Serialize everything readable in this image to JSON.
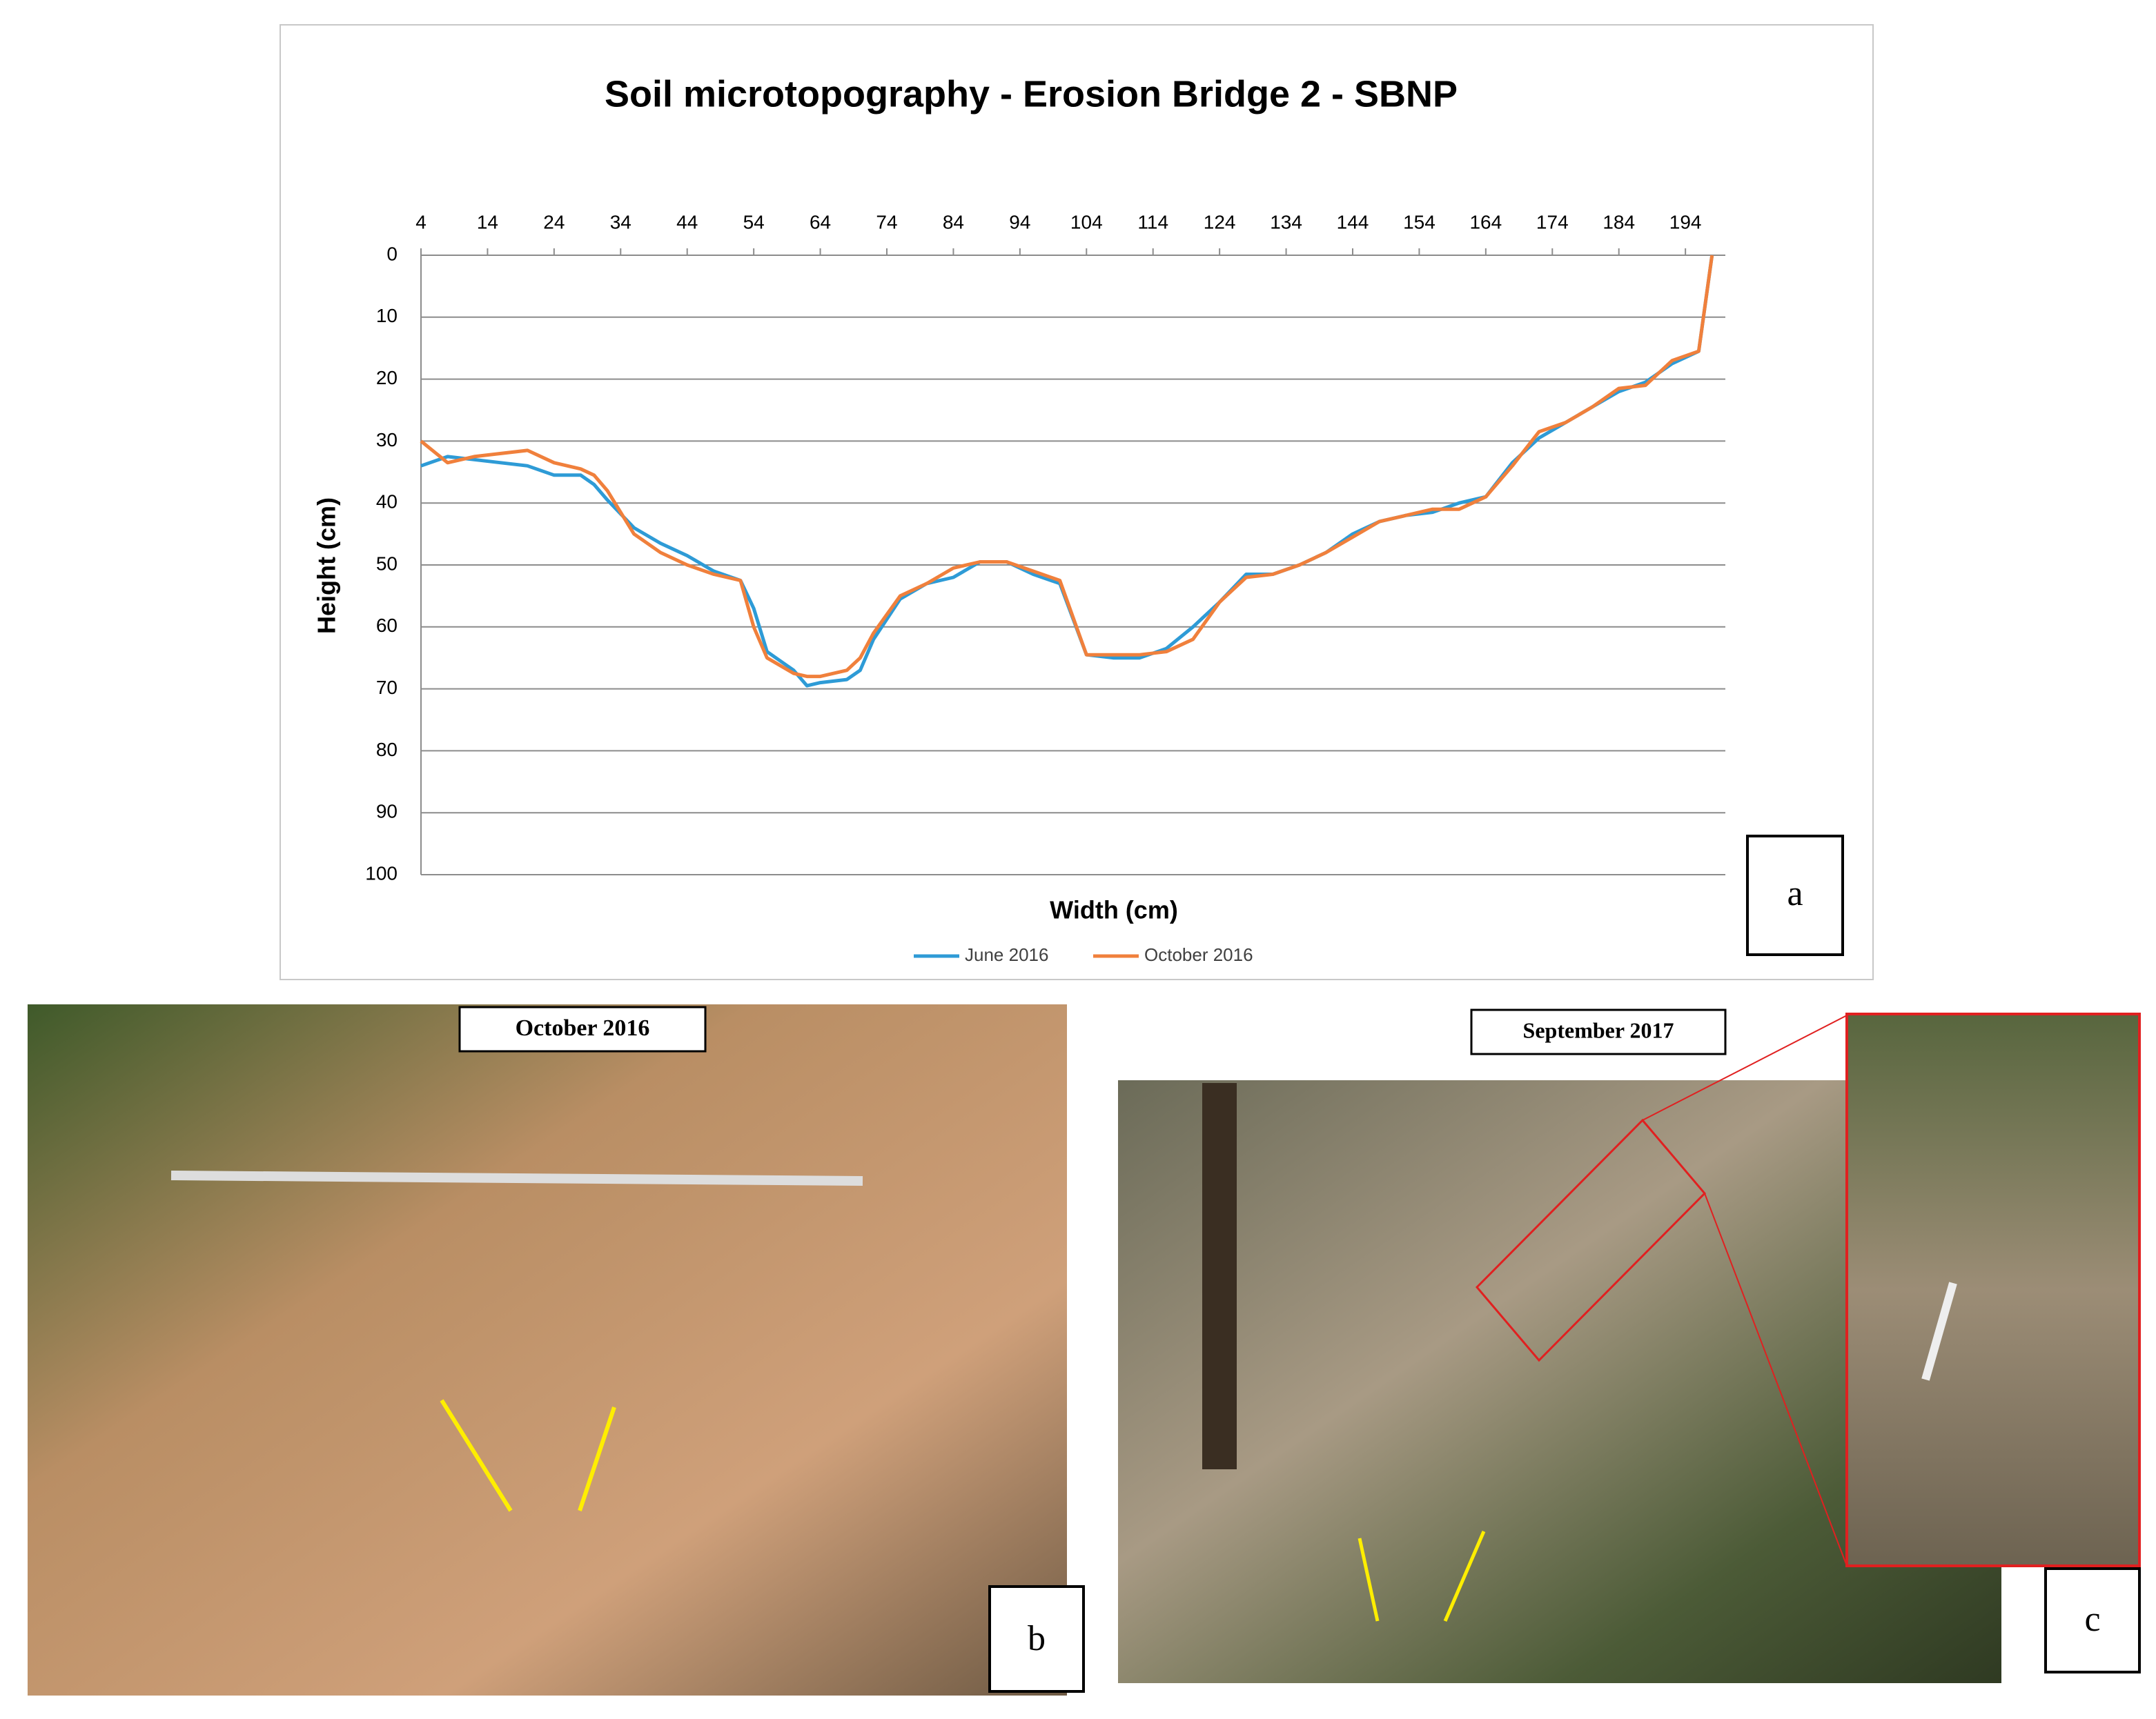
{
  "chart_data": {
    "type": "line",
    "title": "Soil microtopography - Erosion Bridge 2 - SBNP",
    "x_label": "Width (cm)",
    "y_label": "Height (cm)",
    "x": [
      4,
      8,
      12,
      16,
      20,
      24,
      28,
      30,
      32,
      36,
      40,
      44,
      48,
      52,
      54,
      56,
      60,
      62,
      64,
      68,
      70,
      72,
      76,
      80,
      84,
      88,
      92,
      96,
      100,
      104,
      108,
      112,
      116,
      120,
      124,
      128,
      132,
      136,
      140,
      144,
      148,
      152,
      156,
      160,
      164,
      168,
      172,
      176,
      180,
      184,
      188,
      192,
      196,
      198
    ],
    "series": [
      {
        "name": "June 2016",
        "color": "#2e9bd6",
        "values": [
          34,
          32.5,
          33,
          33.5,
          34,
          35.5,
          35.5,
          37,
          39.5,
          44,
          46.5,
          48.5,
          51,
          52.5,
          57,
          64,
          67,
          69.5,
          69,
          68.5,
          67,
          62,
          55.5,
          53,
          52,
          49.5,
          49.5,
          51.5,
          53,
          64.5,
          65,
          65,
          63.5,
          60,
          56,
          51.5,
          51.5,
          50,
          48,
          45,
          43,
          42,
          41.5,
          40,
          39,
          33.5,
          29.5,
          27,
          24.5,
          22,
          20.5,
          17.5,
          15.5,
          0
        ]
      },
      {
        "name": "October 2016",
        "color": "#f0803c",
        "values": [
          30,
          33.5,
          32.5,
          32,
          31.5,
          33.5,
          34.5,
          35.5,
          38,
          45,
          48,
          50,
          51.5,
          52.5,
          60,
          65,
          67.5,
          68,
          68,
          67,
          65,
          61,
          55,
          53,
          50.5,
          49.5,
          49.5,
          51,
          52.5,
          64.5,
          64.5,
          64.5,
          64,
          62,
          56,
          52,
          51.5,
          50,
          48,
          45.5,
          43,
          42,
          41,
          41,
          39,
          34,
          28.5,
          27,
          24.5,
          21.5,
          21,
          17,
          15.5,
          0
        ]
      }
    ],
    "xlim": [
      4,
      200
    ],
    "xticks": [
      4,
      14,
      24,
      34,
      44,
      54,
      64,
      74,
      84,
      94,
      104,
      114,
      124,
      134,
      144,
      154,
      164,
      174,
      184,
      194
    ],
    "ylim": [
      0,
      100
    ],
    "yticks": [
      0,
      10,
      20,
      30,
      40,
      50,
      60,
      70,
      80,
      90,
      100
    ],
    "y_inverted": true,
    "x_axis_position": "top",
    "grid": true,
    "legend": "bottom"
  },
  "panel_label": "a",
  "photos": [
    {
      "caption": "October 2016",
      "label": "b"
    },
    {
      "caption": "September 2017",
      "label": "c"
    }
  ]
}
